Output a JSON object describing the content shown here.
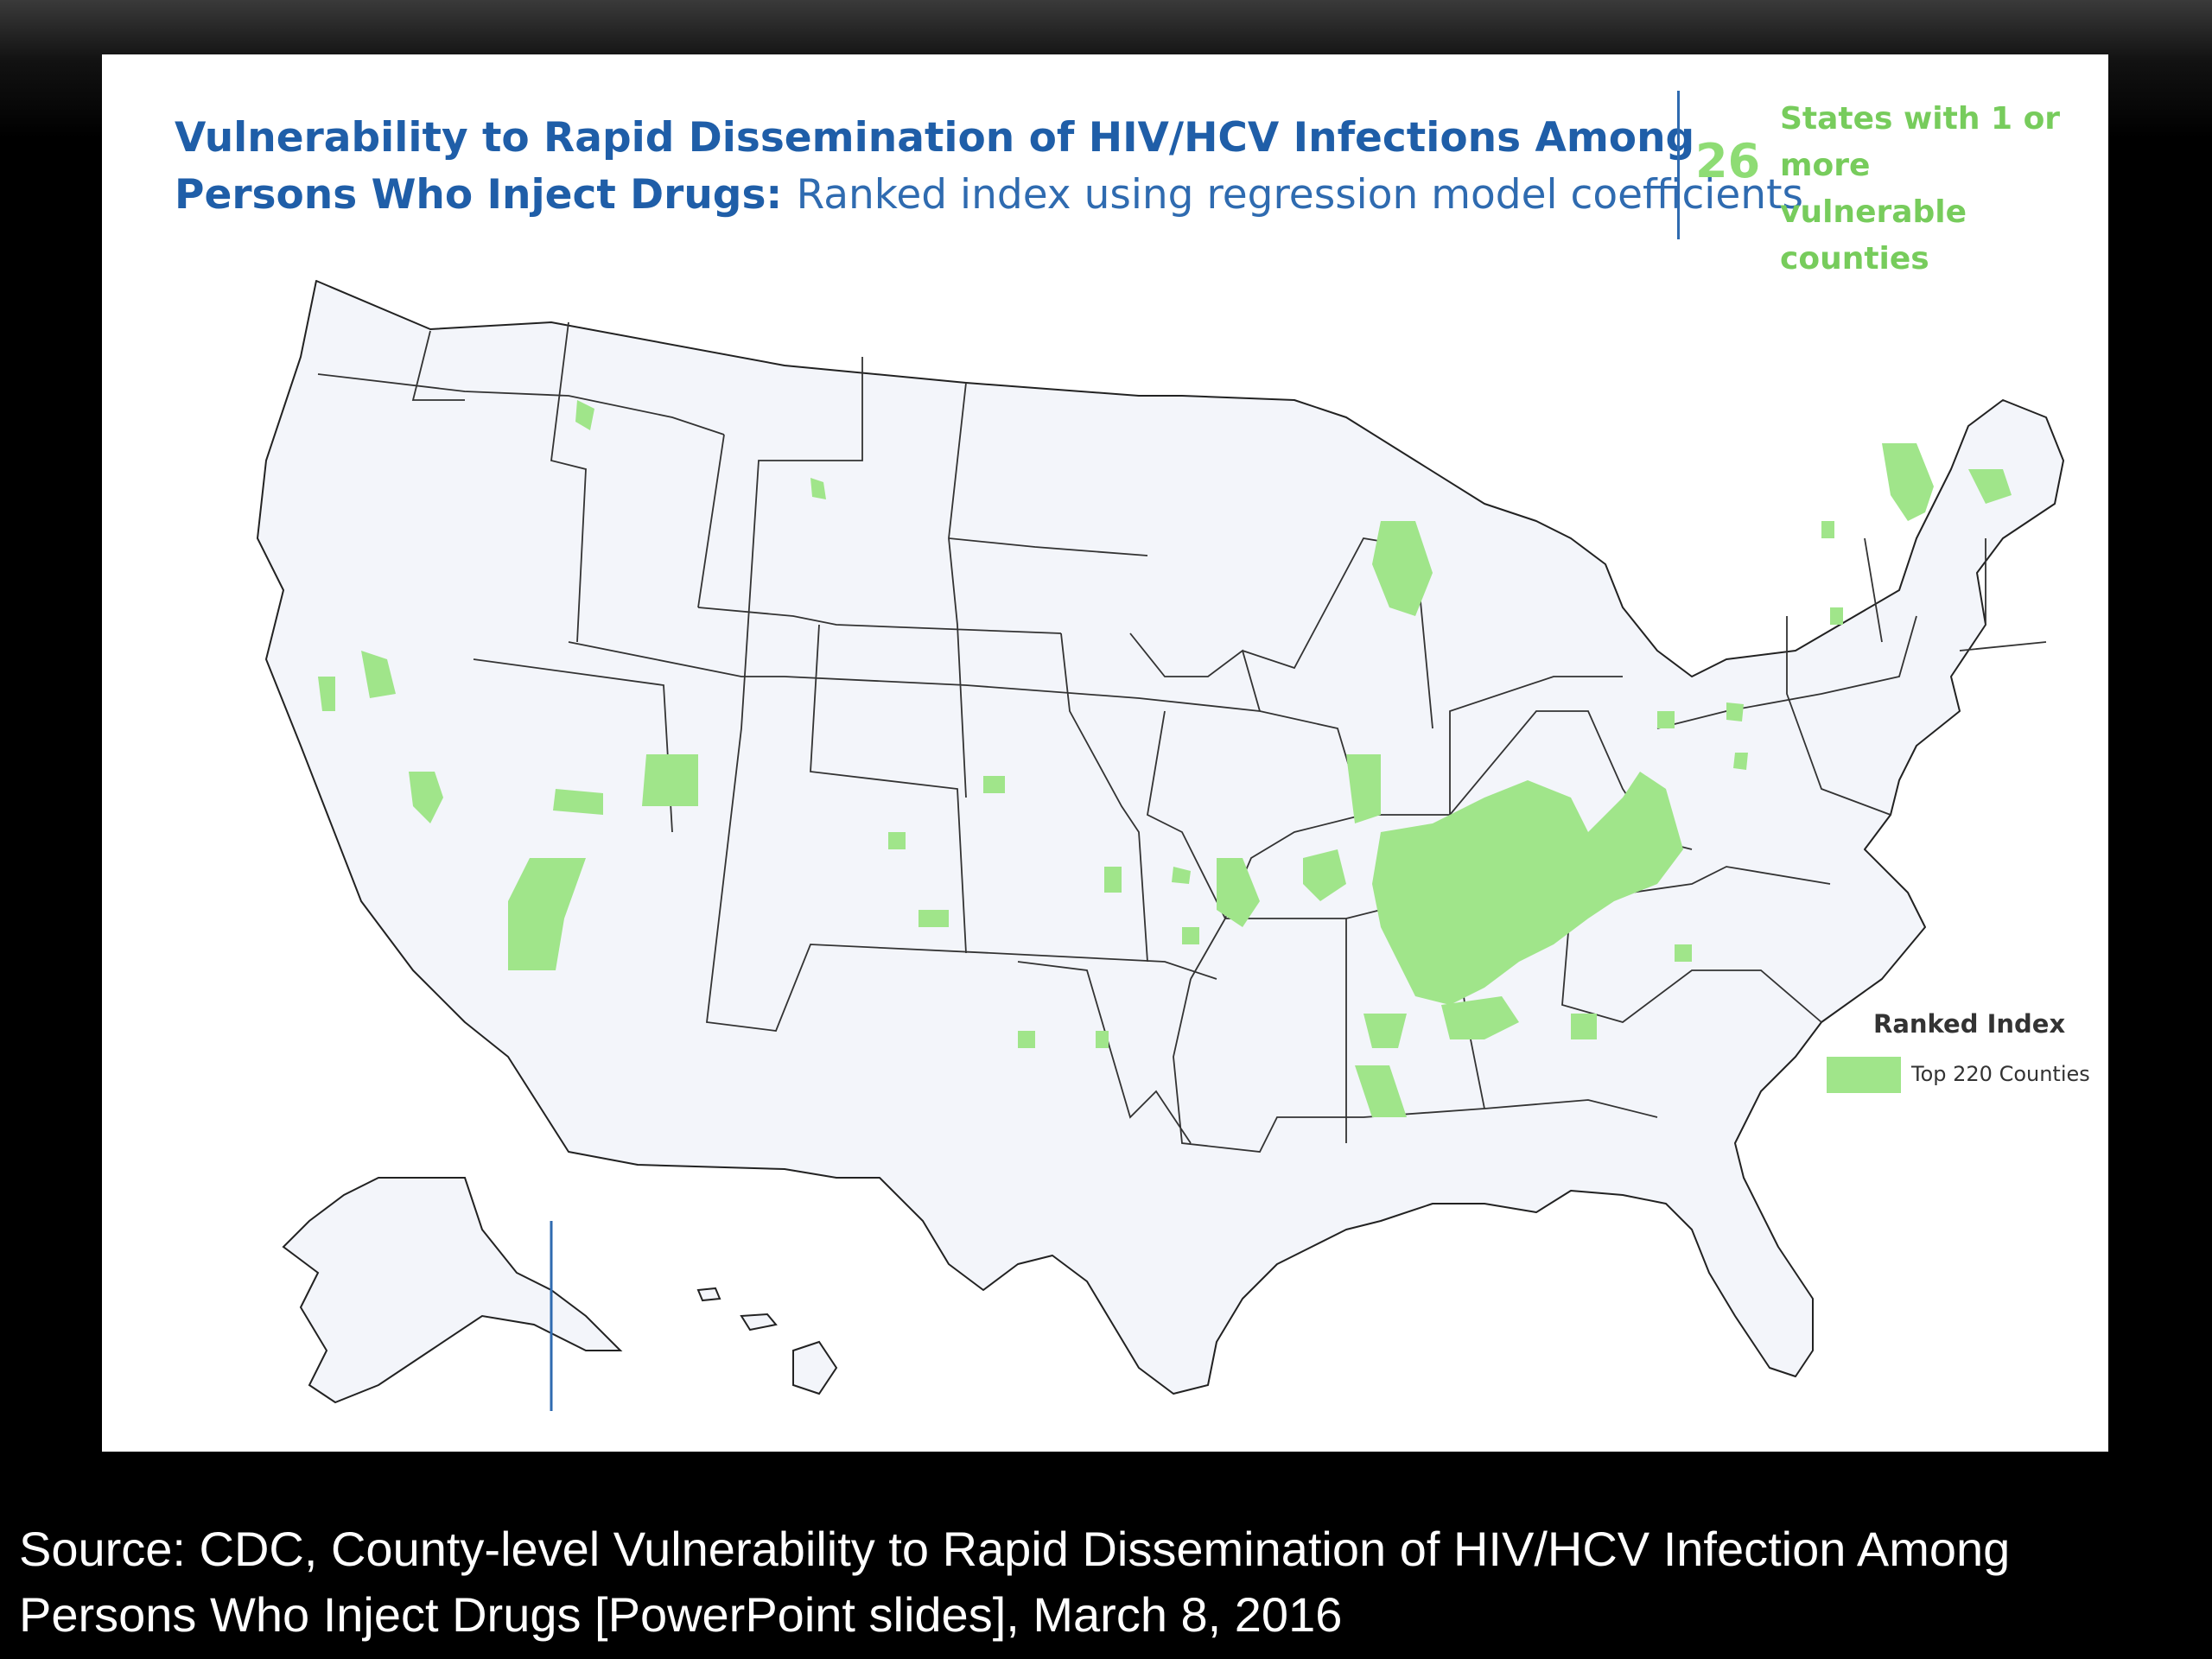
{
  "title": {
    "line1": "Vulnerability to Rapid Dissemination of HIV/HCV Infections Among",
    "line2_bold": "Persons Who Inject Drugs:",
    "line2_rest": "Ranked index using regression model coefficients"
  },
  "stat": {
    "number": "26",
    "text": "States with 1 or more vulnerable counties"
  },
  "legend": {
    "title": "Ranked Index",
    "items": [
      {
        "label": "Top 220 Counties",
        "color": "#a0e58a"
      }
    ]
  },
  "source": {
    "text": "Source:  CDC, County-level Vulnerability to Rapid Dissemination of HIV/HCV Infection Among Persons Who Inject Drugs [PowerPoint slides], March 8, 2016"
  },
  "colors": {
    "title": "#1f5ea8",
    "accent": "#77cc5c",
    "state_fill": "#f3f5fa",
    "highlight": "#a0e58a",
    "background": "#000000"
  }
}
